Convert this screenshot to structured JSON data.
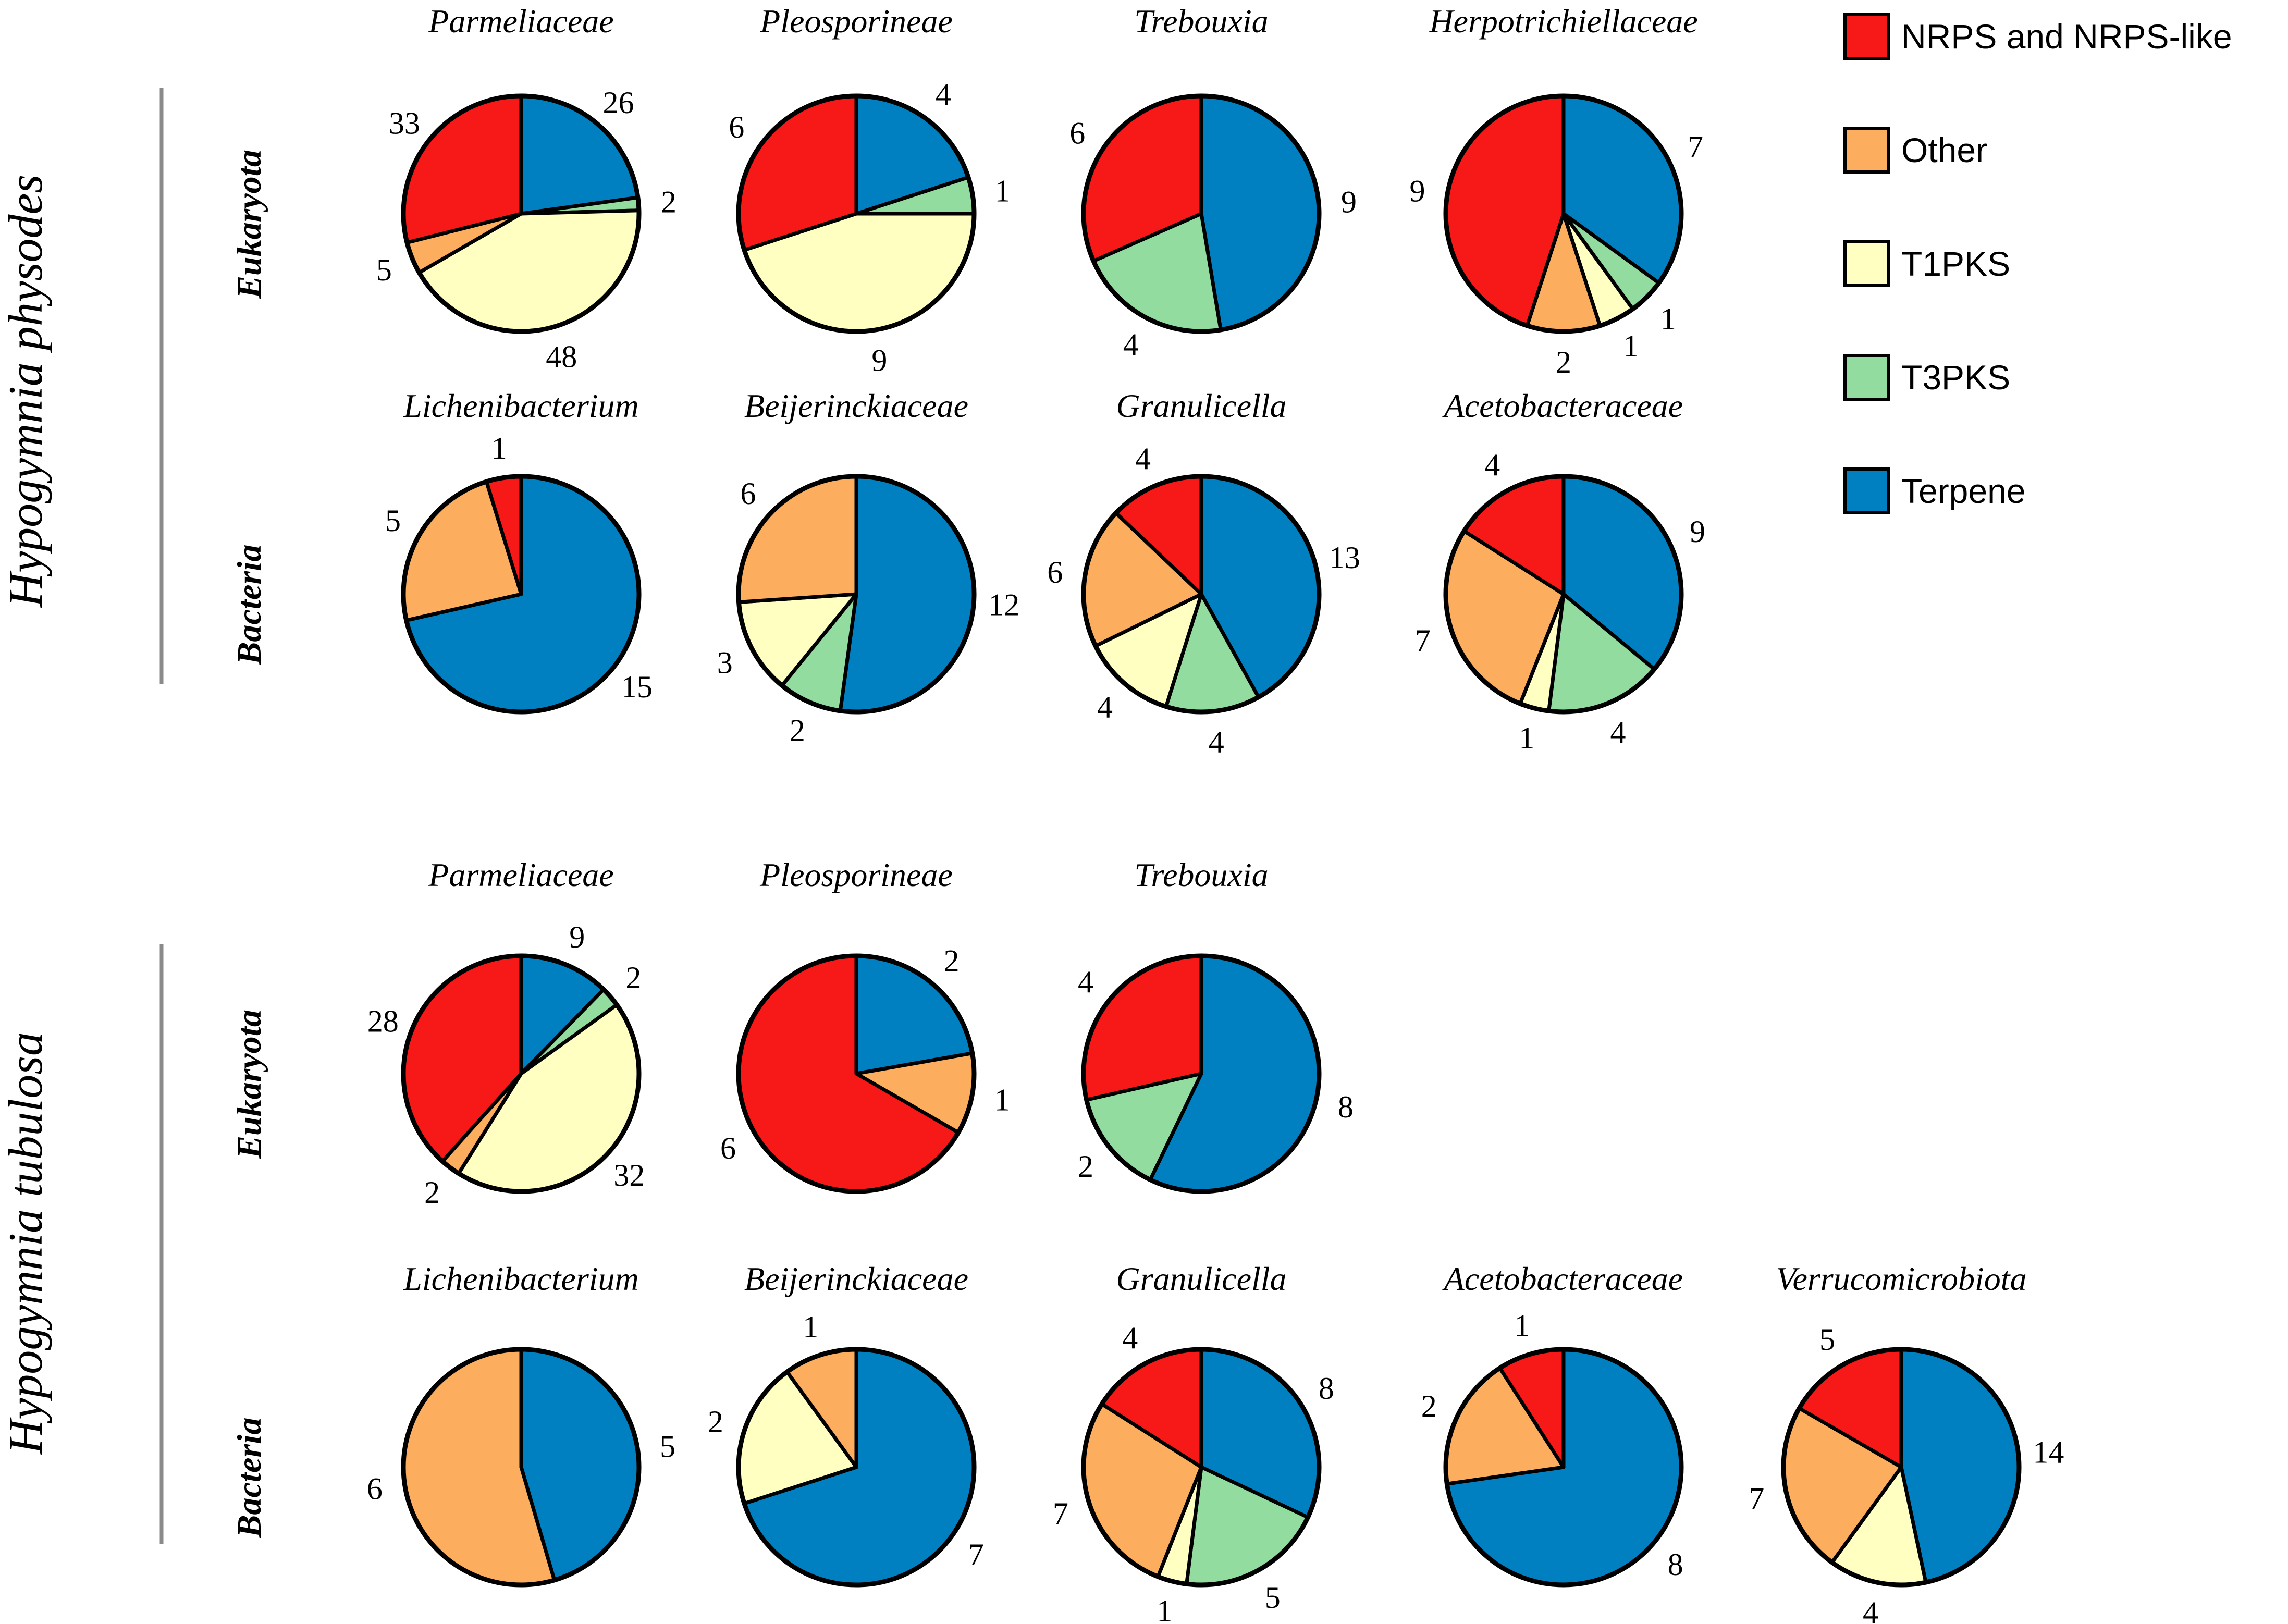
{
  "chart_data": {
    "type": "pie",
    "unit": "BGC count",
    "colors": {
      "nrps": "#f71818",
      "other": "#fcad5e",
      "t1pks": "#ffffc2",
      "t3pks": "#92dca0",
      "terpene": "#0080c0"
    },
    "legend": {
      "placement": "top-right",
      "items": [
        {
          "key": "nrps",
          "label": "NRPS and NRPS-like"
        },
        {
          "key": "other",
          "label": "Other"
        },
        {
          "key": "t1pks",
          "label": "T1PKS"
        },
        {
          "key": "t3pks",
          "label": "T3PKS"
        },
        {
          "key": "terpene",
          "label": "Terpene"
        }
      ]
    },
    "panels": [
      {
        "host": "Hypogymnia physodes",
        "rows": [
          {
            "group": "Eukaryota",
            "charts": [
              {
                "title": "Parmeliaceae",
                "slices": [
                  {
                    "key": "terpene",
                    "value": 26
                  },
                  {
                    "key": "t3pks",
                    "value": 2
                  },
                  {
                    "key": "t1pks",
                    "value": 48
                  },
                  {
                    "key": "other",
                    "value": 5
                  },
                  {
                    "key": "nrps",
                    "value": 33
                  }
                ]
              },
              {
                "title": "Pleosporineae",
                "slices": [
                  {
                    "key": "terpene",
                    "value": 4
                  },
                  {
                    "key": "t3pks",
                    "value": 1
                  },
                  {
                    "key": "t1pks",
                    "value": 9
                  },
                  {
                    "key": "nrps",
                    "value": 6
                  }
                ]
              },
              {
                "title": "Trebouxia",
                "slices": [
                  {
                    "key": "terpene",
                    "value": 9
                  },
                  {
                    "key": "t3pks",
                    "value": 4
                  },
                  {
                    "key": "nrps",
                    "value": 6
                  }
                ]
              },
              {
                "title": "Herpotrichiellaceae",
                "slices": [
                  {
                    "key": "terpene",
                    "value": 7
                  },
                  {
                    "key": "t3pks",
                    "value": 1
                  },
                  {
                    "key": "t1pks",
                    "value": 1
                  },
                  {
                    "key": "other",
                    "value": 2
                  },
                  {
                    "key": "nrps",
                    "value": 9
                  }
                ]
              }
            ]
          },
          {
            "group": "Bacteria",
            "charts": [
              {
                "title": "Lichenibacterium",
                "slices": [
                  {
                    "key": "terpene",
                    "value": 15
                  },
                  {
                    "key": "other",
                    "value": 5
                  },
                  {
                    "key": "nrps",
                    "value": 1
                  }
                ]
              },
              {
                "title": "Beijerinckiaceae",
                "slices": [
                  {
                    "key": "terpene",
                    "value": 12
                  },
                  {
                    "key": "t3pks",
                    "value": 2
                  },
                  {
                    "key": "t1pks",
                    "value": 3
                  },
                  {
                    "key": "other",
                    "value": 6
                  }
                ]
              },
              {
                "title": "Granulicella",
                "slices": [
                  {
                    "key": "terpene",
                    "value": 13
                  },
                  {
                    "key": "t3pks",
                    "value": 4
                  },
                  {
                    "key": "t1pks",
                    "value": 4
                  },
                  {
                    "key": "other",
                    "value": 6
                  },
                  {
                    "key": "nrps",
                    "value": 4
                  }
                ]
              },
              {
                "title": "Acetobacteraceae",
                "slices": [
                  {
                    "key": "terpene",
                    "value": 9
                  },
                  {
                    "key": "t3pks",
                    "value": 4
                  },
                  {
                    "key": "t1pks",
                    "value": 1
                  },
                  {
                    "key": "other",
                    "value": 7
                  },
                  {
                    "key": "nrps",
                    "value": 4
                  }
                ]
              }
            ]
          }
        ]
      },
      {
        "host": "Hypogymnia tubulosa",
        "rows": [
          {
            "group": "Eukaryota",
            "charts": [
              {
                "title": "Parmeliaceae",
                "slices": [
                  {
                    "key": "terpene",
                    "value": 9
                  },
                  {
                    "key": "t3pks",
                    "value": 2
                  },
                  {
                    "key": "t1pks",
                    "value": 32
                  },
                  {
                    "key": "other",
                    "value": 2
                  },
                  {
                    "key": "nrps",
                    "value": 28
                  }
                ]
              },
              {
                "title": "Pleosporineae",
                "slices": [
                  {
                    "key": "terpene",
                    "value": 2
                  },
                  {
                    "key": "other",
                    "value": 1
                  },
                  {
                    "key": "nrps",
                    "value": 6
                  }
                ]
              },
              {
                "title": "Trebouxia",
                "slices": [
                  {
                    "key": "terpene",
                    "value": 8
                  },
                  {
                    "key": "t3pks",
                    "value": 2
                  },
                  {
                    "key": "nrps",
                    "value": 4
                  }
                ]
              }
            ]
          },
          {
            "group": "Bacteria",
            "charts": [
              {
                "title": "Lichenibacterium",
                "slices": [
                  {
                    "key": "terpene",
                    "value": 5
                  },
                  {
                    "key": "other",
                    "value": 6
                  }
                ]
              },
              {
                "title": "Beijerinckiaceae",
                "slices": [
                  {
                    "key": "terpene",
                    "value": 7
                  },
                  {
                    "key": "t1pks",
                    "value": 2
                  },
                  {
                    "key": "other",
                    "value": 1
                  }
                ]
              },
              {
                "title": "Granulicella",
                "slices": [
                  {
                    "key": "terpene",
                    "value": 8
                  },
                  {
                    "key": "t3pks",
                    "value": 5
                  },
                  {
                    "key": "t1pks",
                    "value": 1
                  },
                  {
                    "key": "other",
                    "value": 7
                  },
                  {
                    "key": "nrps",
                    "value": 4
                  }
                ]
              },
              {
                "title": "Acetobacteraceae",
                "slices": [
                  {
                    "key": "terpene",
                    "value": 8
                  },
                  {
                    "key": "other",
                    "value": 2
                  },
                  {
                    "key": "nrps",
                    "value": 1
                  }
                ]
              },
              {
                "title": "Verrucomicrobiota",
                "slices": [
                  {
                    "key": "terpene",
                    "value": 14
                  },
                  {
                    "key": "t1pks",
                    "value": 4
                  },
                  {
                    "key": "other",
                    "value": 7
                  },
                  {
                    "key": "nrps",
                    "value": 5
                  }
                ]
              }
            ]
          }
        ]
      }
    ]
  }
}
